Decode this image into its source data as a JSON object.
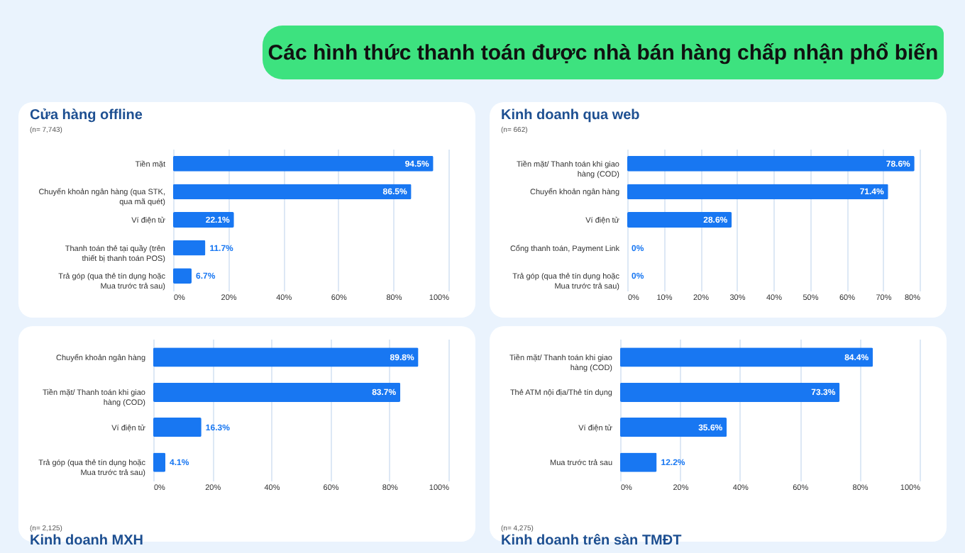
{
  "chart_data": [
    {
      "type": "other",
      "title": "Các hình thức thanh toán được nhà bán hàng chấp nhận phổ biến"
    },
    {
      "type": "bar",
      "orientation": "horizontal",
      "title": "Cửa hàng offline",
      "annotations": [
        "(n= 7,743)"
      ],
      "categories": [
        "Tiền mặt",
        "Chuyển khoản ngân hàng (qua STK, qua mã quét)",
        "Ví điện tử",
        "Thanh toán thẻ tại quầy (trên thiết bị thanh toán POS)",
        "Trả góp (qua thẻ tín dụng hoặc Mua trước trả sau)"
      ],
      "values": [
        94.5,
        86.5,
        22.1,
        11.7,
        6.7
      ],
      "value_labels": [
        "94.5%",
        "86.5%",
        "22.1%",
        "11.7%",
        "6.7%"
      ],
      "color": "#1877f2",
      "xlim": [
        0,
        100
      ],
      "xticks": [
        {
          "value": 0,
          "label": "0%"
        },
        {
          "value": 20,
          "label": "20%"
        },
        {
          "value": 40,
          "label": "40%"
        },
        {
          "value": 60,
          "label": "60%"
        },
        {
          "value": 80,
          "label": "80%"
        },
        {
          "value": 100,
          "label": "100%"
        }
      ],
      "grid": "x"
    },
    {
      "type": "bar",
      "orientation": "horizontal",
      "title": "Kinh doanh qua web",
      "annotations": [
        "(n= 662)"
      ],
      "categories": [
        "Tiền mặt/ Thanh toán khi giao hàng (COD)",
        "Chuyển khoản ngân hàng",
        "Ví điện tử",
        "Cổng thanh toán, Payment Link",
        "Trả góp (qua thẻ tín dụng hoặc Mua trước trả sau)"
      ],
      "values": [
        78.6,
        71.4,
        28.6,
        0,
        0
      ],
      "value_labels": [
        "78.6%",
        "71.4%",
        "28.6%",
        "0%",
        "0%"
      ],
      "color": "#1877f2",
      "xlim": [
        0,
        80
      ],
      "xticks": [
        {
          "value": 0,
          "label": "0%"
        },
        {
          "value": 10,
          "label": "10%"
        },
        {
          "value": 20,
          "label": "20%"
        },
        {
          "value": 30,
          "label": "30%"
        },
        {
          "value": 40,
          "label": "40%"
        },
        {
          "value": 50,
          "label": "50%"
        },
        {
          "value": 60,
          "label": "60%"
        },
        {
          "value": 70,
          "label": "70%"
        },
        {
          "value": 80,
          "label": "80%"
        }
      ],
      "grid": "x"
    },
    {
      "type": "bar",
      "orientation": "horizontal",
      "title": "Kinh doanh MXH",
      "annotations": [
        "(n= 2,125)"
      ],
      "categories": [
        "Chuyển khoản ngân hàng",
        "Tiền mặt/ Thanh toán khi giao hàng (COD)",
        "Ví điện tử",
        "Trả góp (qua thẻ tín dụng hoặc Mua trước trả sau)"
      ],
      "values": [
        89.8,
        83.7,
        16.3,
        4.1
      ],
      "value_labels": [
        "89.8%",
        "83.7%",
        "16.3%",
        "4.1%"
      ],
      "color": "#1877f2",
      "xlim": [
        0,
        100
      ],
      "xticks": [
        {
          "value": 0,
          "label": "0%"
        },
        {
          "value": 20,
          "label": "20%"
        },
        {
          "value": 40,
          "label": "40%"
        },
        {
          "value": 60,
          "label": "60%"
        },
        {
          "value": 80,
          "label": "80%"
        },
        {
          "value": 100,
          "label": "100%"
        }
      ],
      "grid": "x"
    },
    {
      "type": "bar",
      "orientation": "horizontal",
      "title": "Kinh doanh trên sàn TMĐT",
      "annotations": [
        "(n= 4,275)"
      ],
      "categories": [
        "Tiền mặt/ Thanh toán khi giao hàng (COD)",
        "Thẻ ATM nội địa/Thẻ tín dụng",
        "Ví điện tử",
        "Mua trước trả sau"
      ],
      "values": [
        84.4,
        73.3,
        35.6,
        12.2
      ],
      "value_labels": [
        "84.4%",
        "73.3%",
        "35.6%",
        "12.2%"
      ],
      "color": "#1877f2",
      "xlim": [
        0,
        100
      ],
      "xticks": [
        {
          "value": 0,
          "label": "0%"
        },
        {
          "value": 20,
          "label": "20%"
        },
        {
          "value": 40,
          "label": "40%"
        },
        {
          "value": 60,
          "label": "60%"
        },
        {
          "value": 80,
          "label": "80%"
        },
        {
          "value": 100,
          "label": "100%"
        }
      ],
      "grid": "x"
    }
  ]
}
